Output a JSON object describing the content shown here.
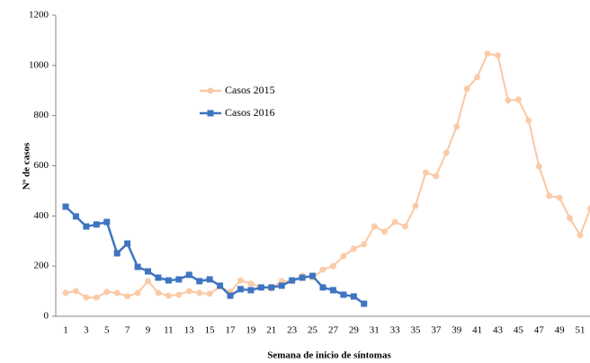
{
  "chart_data": {
    "type": "line",
    "xlabel": "Semana de inicio de síntomas",
    "ylabel": "Nº de casos",
    "categories": [
      "1",
      null,
      "3",
      null,
      "5",
      null,
      "7",
      null,
      "9",
      null,
      "11",
      null,
      "13",
      null,
      "15",
      null,
      "17",
      null,
      "19",
      null,
      "21",
      null,
      "23",
      null,
      "25",
      null,
      "27",
      null,
      "29",
      null,
      "31",
      null,
      "33",
      null,
      "35",
      null,
      "37",
      null,
      "39",
      null,
      "41",
      null,
      "43",
      null,
      "45",
      null,
      "47",
      null,
      "49",
      null,
      "51",
      null
    ],
    "series": [
      {
        "name": "Casos 2015",
        "color": "#f9c8a4",
        "marker": "circle",
        "values": [
          93,
          100,
          75,
          75,
          97,
          93,
          80,
          93,
          140,
          93,
          82,
          86,
          100,
          93,
          90,
          118,
          97,
          143,
          130,
          115,
          111,
          140,
          140,
          161,
          154,
          186,
          200,
          240,
          269,
          287,
          358,
          337,
          376,
          358,
          440,
          573,
          559,
          652,
          756,
          907,
          953,
          1047,
          1040,
          860,
          864,
          781,
          598,
          480,
          473,
          391,
          323,
          430
        ]
      },
      {
        "name": "Casos 2016",
        "color": "#3f74c0",
        "marker": "square",
        "values": [
          437,
          398,
          358,
          366,
          376,
          251,
          290,
          197,
          179,
          154,
          143,
          147,
          165,
          140,
          147,
          122,
          82,
          108,
          104,
          115,
          115,
          122,
          143,
          154,
          161,
          115,
          104,
          86,
          79,
          50,
          null,
          null,
          null,
          null,
          null,
          null,
          null,
          null,
          null,
          null,
          null,
          null,
          null,
          null,
          null,
          null,
          null,
          null,
          null,
          null,
          null,
          null
        ]
      }
    ],
    "ylim": [
      0,
      1200
    ],
    "yticks": [
      0,
      200,
      400,
      600,
      800,
      1000,
      1200
    ],
    "grid": false
  }
}
